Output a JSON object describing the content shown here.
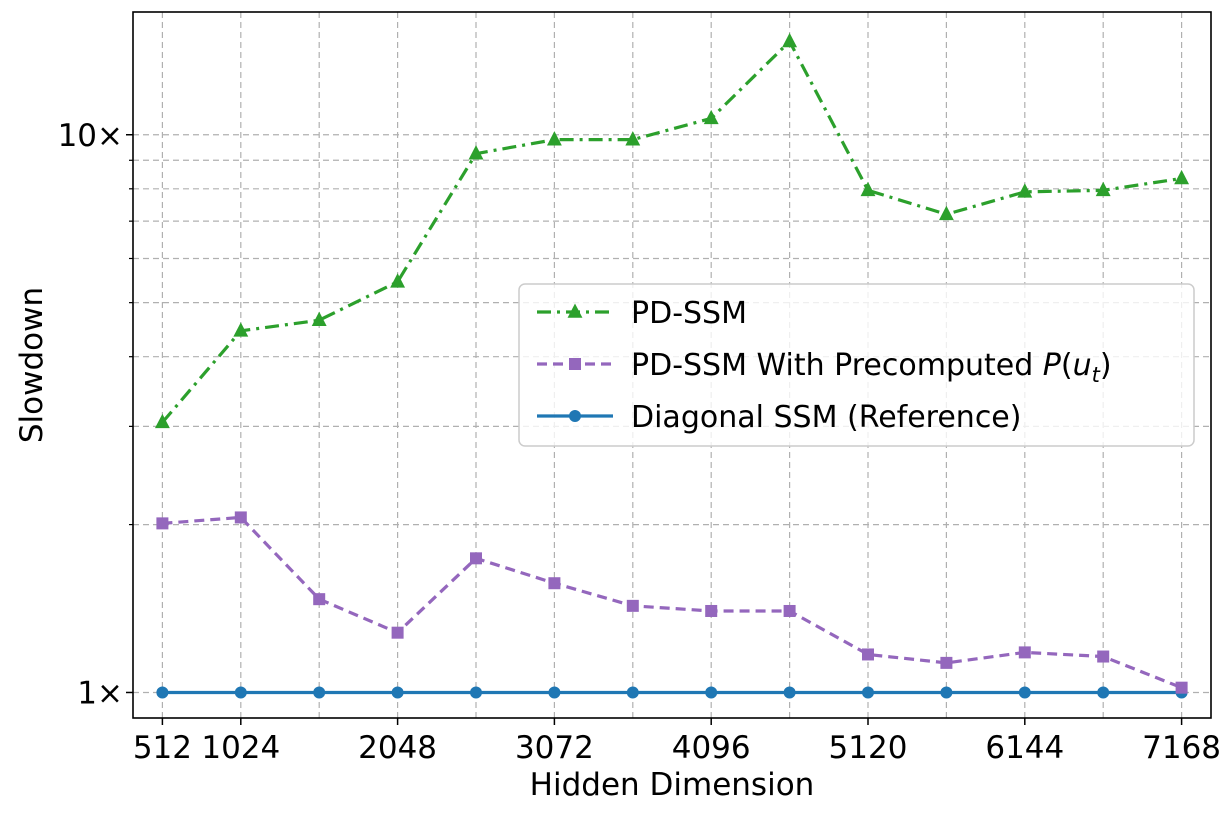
{
  "chart_data": {
    "type": "line",
    "xlabel": "Hidden Dimension",
    "ylabel": "Slowdown",
    "yscale": "log",
    "grid": true,
    "legend_position": "center-right",
    "x": [
      512,
      1024,
      1536,
      2048,
      2560,
      3072,
      3584,
      4096,
      4608,
      5120,
      5632,
      6144,
      6656,
      7168
    ],
    "xticks": [
      512,
      1024,
      2048,
      3072,
      4096,
      5120,
      6144,
      7168
    ],
    "xtick_labels": [
      "512",
      "1024",
      "2048",
      "3072",
      "4096",
      "5120",
      "6144",
      "7168"
    ],
    "yticks": [
      1,
      10
    ],
    "ytick_labels": [
      "1×",
      "10×"
    ],
    "xlim": [
      320,
      7360
    ],
    "ylim": [
      0.9,
      16.6
    ],
    "series": [
      {
        "name": "PD-SSM",
        "color": "#2ca02c",
        "marker": "triangle",
        "linestyle": "dashdot",
        "values": [
          3.05,
          4.45,
          4.65,
          5.45,
          9.25,
          9.8,
          9.8,
          10.7,
          14.7,
          7.95,
          7.2,
          7.9,
          7.95,
          8.35
        ]
      },
      {
        "name": "PD-SSM With Precomputed P(u_t)",
        "name_parts": [
          "PD-SSM With Precomputed ",
          "P",
          "(",
          "u",
          "t",
          ")"
        ],
        "color": "#9467bd",
        "marker": "square",
        "linestyle": "dashed",
        "values": [
          2.01,
          2.06,
          1.47,
          1.28,
          1.74,
          1.57,
          1.43,
          1.4,
          1.4,
          1.17,
          1.13,
          1.18,
          1.16,
          1.02
        ]
      },
      {
        "name": "Diagonal SSM (Reference)",
        "color": "#1f77b4",
        "marker": "circle",
        "linestyle": "solid",
        "values": [
          1,
          1,
          1,
          1,
          1,
          1,
          1,
          1,
          1,
          1,
          1,
          1,
          1,
          1
        ]
      }
    ]
  }
}
